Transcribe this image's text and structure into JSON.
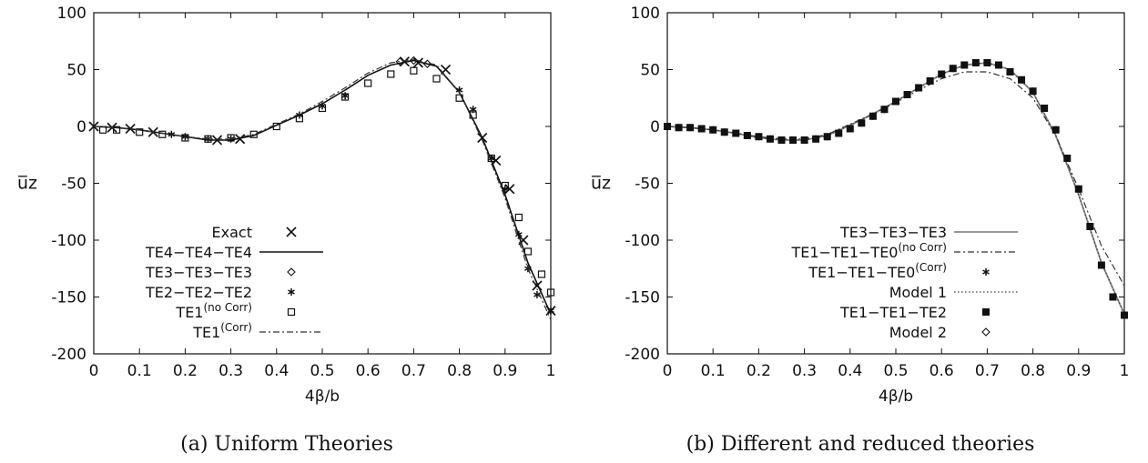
{
  "chart_data": [
    {
      "type": "line",
      "panel": "a",
      "caption": "(a) Uniform Theories",
      "xlabel": "4β/b",
      "ylabel": "u̅z",
      "xlim": [
        0,
        1
      ],
      "ylim": [
        -200,
        100
      ],
      "xticks": [
        0,
        0.1,
        0.2,
        0.3,
        0.4,
        0.5,
        0.6,
        0.7,
        0.8,
        0.9,
        1
      ],
      "xtick_labels": [
        "0",
        "0.1",
        "0.2",
        "0.3",
        "0.4",
        "0.5",
        "0.6",
        "0.7",
        "0.8",
        "0.9",
        "1"
      ],
      "yticks": [
        100,
        50,
        0,
        -50,
        -100,
        -150,
        -200
      ],
      "ytick_labels": [
        "100",
        "50",
        "0",
        "-50",
        "-100",
        "-150",
        "-200"
      ],
      "legend_position": "bottom-left",
      "series": [
        {
          "name": "Exact",
          "label_main": "Exact",
          "label_sup": "",
          "style": "marker",
          "marker": "x",
          "x": [
            0,
            0.04,
            0.08,
            0.13,
            0.27,
            0.32,
            0.68,
            0.71,
            0.77,
            0.85,
            0.88,
            0.91,
            0.94,
            0.97,
            1.0
          ],
          "y": [
            0,
            -1,
            -2,
            -5,
            -12,
            -11,
            57,
            56,
            50,
            -10,
            -30,
            -55,
            -100,
            -140,
            -162
          ]
        },
        {
          "name": "TE4-TE4-TE4",
          "label_main": "TE4−TE4−TE4",
          "label_sup": "",
          "style": "solid",
          "x": [
            0,
            0.05,
            0.1,
            0.15,
            0.2,
            0.25,
            0.3,
            0.35,
            0.4,
            0.45,
            0.5,
            0.55,
            0.6,
            0.65,
            0.7,
            0.75,
            0.8,
            0.85,
            0.9,
            0.95,
            1.0
          ],
          "y": [
            0,
            -1,
            -3,
            -6,
            -9,
            -12,
            -12,
            -8,
            1,
            10,
            20,
            32,
            45,
            54,
            58,
            53,
            30,
            -10,
            -60,
            -120,
            -165
          ]
        },
        {
          "name": "TE3-TE3-TE3",
          "label_main": "TE3−TE3−TE3",
          "label_sup": "",
          "style": "marker",
          "marker": "diamond",
          "x": [
            0.67,
            0.7,
            0.73
          ],
          "y": [
            57,
            58,
            55
          ]
        },
        {
          "name": "TE2-TE2-TE2",
          "label_main": "TE2−TE2−TE2",
          "label_sup": "",
          "style": "marker",
          "marker": "star",
          "x": [
            0.17,
            0.2,
            0.25,
            0.3,
            0.45,
            0.5,
            0.55,
            0.8,
            0.83,
            0.87,
            0.9,
            0.93,
            0.95,
            0.97,
            1.0
          ],
          "y": [
            -7,
            -9,
            -11,
            -11,
            10,
            18,
            27,
            32,
            15,
            -28,
            -55,
            -95,
            -125,
            -148,
            -162
          ]
        },
        {
          "name": "TE1(no Corr)",
          "label_main": "TE1",
          "label_sup": "(no Corr)",
          "style": "marker",
          "marker": "square",
          "x": [
            0.02,
            0.05,
            0.1,
            0.15,
            0.2,
            0.25,
            0.3,
            0.35,
            0.4,
            0.45,
            0.5,
            0.55,
            0.6,
            0.65,
            0.7,
            0.75,
            0.8,
            0.83,
            0.87,
            0.9,
            0.93,
            0.95,
            0.98,
            1.0
          ],
          "y": [
            -3,
            -3,
            -5,
            -7,
            -10,
            -11,
            -10,
            -7,
            0,
            7,
            16,
            26,
            38,
            46,
            49,
            42,
            25,
            10,
            -28,
            -52,
            -80,
            -110,
            -130,
            -146
          ]
        },
        {
          "name": "TE1(Corr)",
          "label_main": "TE1",
          "label_sup": "(Corr)",
          "style": "dashdot",
          "x": [
            0,
            0.05,
            0.1,
            0.15,
            0.2,
            0.25,
            0.3,
            0.35,
            0.4,
            0.45,
            0.5,
            0.55,
            0.6,
            0.65,
            0.7,
            0.75,
            0.8,
            0.85,
            0.9,
            0.95,
            1.0
          ],
          "y": [
            0,
            -1,
            -3,
            -6,
            -9,
            -11,
            -11,
            -7,
            2,
            11,
            22,
            34,
            47,
            56,
            59,
            54,
            30,
            -12,
            -63,
            -125,
            -170
          ]
        }
      ]
    },
    {
      "type": "line",
      "panel": "b",
      "caption": "(b) Different and reduced theories",
      "xlabel": "4β/b",
      "ylabel": "u̅z",
      "xlim": [
        0,
        1
      ],
      "ylim": [
        -200,
        100
      ],
      "xticks": [
        0,
        0.1,
        0.2,
        0.3,
        0.4,
        0.5,
        0.6,
        0.7,
        0.8,
        0.9,
        1
      ],
      "xtick_labels": [
        "0",
        "0.1",
        "0.2",
        "0.3",
        "0.4",
        "0.5",
        "0.6",
        "0.7",
        "0.8",
        "0.9",
        "1"
      ],
      "yticks": [
        100,
        50,
        0,
        -50,
        -100,
        -150,
        -200
      ],
      "ytick_labels": [
        "100",
        "50",
        "0",
        "-50",
        "-100",
        "-150",
        "-200"
      ],
      "legend_position": "bottom-right",
      "series": [
        {
          "name": "TE3-TE3-TE3",
          "label_main": "TE3−TE3−TE3",
          "label_sup": "",
          "style": "solid-gray",
          "x": [
            0,
            0.05,
            0.1,
            0.15,
            0.2,
            0.25,
            0.3,
            0.35,
            0.4,
            0.45,
            0.5,
            0.55,
            0.6,
            0.65,
            0.7,
            0.75,
            0.8,
            0.85,
            0.9,
            0.95,
            1.0
          ],
          "y": [
            0,
            -1,
            -3,
            -6,
            -10,
            -12,
            -12,
            -8,
            1,
            11,
            22,
            34,
            46,
            54,
            56,
            50,
            30,
            -8,
            -60,
            -120,
            -165
          ]
        },
        {
          "name": "TE1-TE1-TE0(no Corr)",
          "label_main": "TE1−TE1−TE0",
          "label_sup": "(no Corr)",
          "style": "dashdot",
          "x": [
            0,
            0.05,
            0.1,
            0.15,
            0.2,
            0.25,
            0.3,
            0.35,
            0.4,
            0.45,
            0.5,
            0.55,
            0.6,
            0.65,
            0.7,
            0.75,
            0.8,
            0.85,
            0.9,
            0.95,
            1.0
          ],
          "y": [
            0,
            -1,
            -3,
            -6,
            -9,
            -11,
            -11,
            -7,
            2,
            11,
            21,
            32,
            42,
            48,
            48,
            42,
            25,
            -8,
            -55,
            -105,
            -140
          ]
        },
        {
          "name": "TE1-TE1-TE0(Corr)",
          "label_main": "TE1−TE1−TE0",
          "label_sup": "(Corr)",
          "style": "marker",
          "marker": "star",
          "x": [
            0,
            0.025,
            0.05,
            0.075,
            0.1,
            0.125,
            0.15,
            0.175,
            0.2,
            0.225,
            0.25,
            0.275,
            0.3,
            0.325,
            0.35,
            0.375,
            0.4,
            0.425,
            0.45,
            0.475,
            0.5,
            0.525,
            0.55,
            0.575,
            0.6,
            0.625,
            0.65,
            0.675,
            0.7,
            0.725,
            0.75,
            0.775,
            0.8,
            0.825,
            0.85,
            0.875,
            0.9,
            0.925,
            0.95,
            0.975,
            1.0
          ],
          "y": [
            0,
            -1,
            -1,
            -2,
            -3,
            -5,
            -6,
            -8,
            -9,
            -11,
            -12,
            -12,
            -12,
            -11,
            -9,
            -6,
            -2,
            3,
            9,
            15,
            22,
            28,
            34,
            40,
            46,
            51,
            54,
            56,
            56,
            54,
            48,
            41,
            31,
            16,
            -3,
            -28,
            -55,
            -88,
            -122,
            -150,
            -166
          ]
        },
        {
          "name": "Model 1",
          "label_main": "Model 1",
          "label_sup": "",
          "style": "dotted",
          "x": [
            0,
            0.05,
            0.1,
            0.15,
            0.2,
            0.25,
            0.3,
            0.35,
            0.4,
            0.45,
            0.5,
            0.55,
            0.6,
            0.65,
            0.7,
            0.75,
            0.8,
            0.85,
            0.9,
            0.95,
            1.0
          ],
          "y": [
            0,
            -1,
            -3,
            -6,
            -10,
            -12,
            -12,
            -8,
            1,
            11,
            22,
            34,
            46,
            54,
            56,
            50,
            30,
            -8,
            -60,
            -120,
            -165
          ]
        },
        {
          "name": "TE1-TE1-TE2",
          "label_main": "TE1−TE1−TE2",
          "label_sup": "",
          "style": "marker",
          "marker": "square-filled",
          "x": [
            0,
            0.025,
            0.05,
            0.075,
            0.1,
            0.125,
            0.15,
            0.175,
            0.2,
            0.225,
            0.25,
            0.275,
            0.3,
            0.325,
            0.35,
            0.375,
            0.4,
            0.425,
            0.45,
            0.475,
            0.5,
            0.525,
            0.55,
            0.575,
            0.6,
            0.625,
            0.65,
            0.675,
            0.7,
            0.725,
            0.75,
            0.775,
            0.8,
            0.825,
            0.85,
            0.875,
            0.9,
            0.925,
            0.95,
            0.975,
            1.0
          ],
          "y": [
            0,
            -1,
            -1,
            -2,
            -3,
            -5,
            -6,
            -8,
            -9,
            -11,
            -12,
            -12,
            -12,
            -11,
            -9,
            -6,
            -2,
            3,
            9,
            15,
            22,
            28,
            34,
            40,
            46,
            51,
            54,
            56,
            56,
            54,
            48,
            41,
            31,
            16,
            -3,
            -28,
            -55,
            -88,
            -122,
            -150,
            -166
          ]
        },
        {
          "name": "Model 2",
          "label_main": "Model 2",
          "label_sup": "",
          "style": "marker",
          "marker": "diamond",
          "x": [],
          "y": []
        }
      ]
    }
  ]
}
